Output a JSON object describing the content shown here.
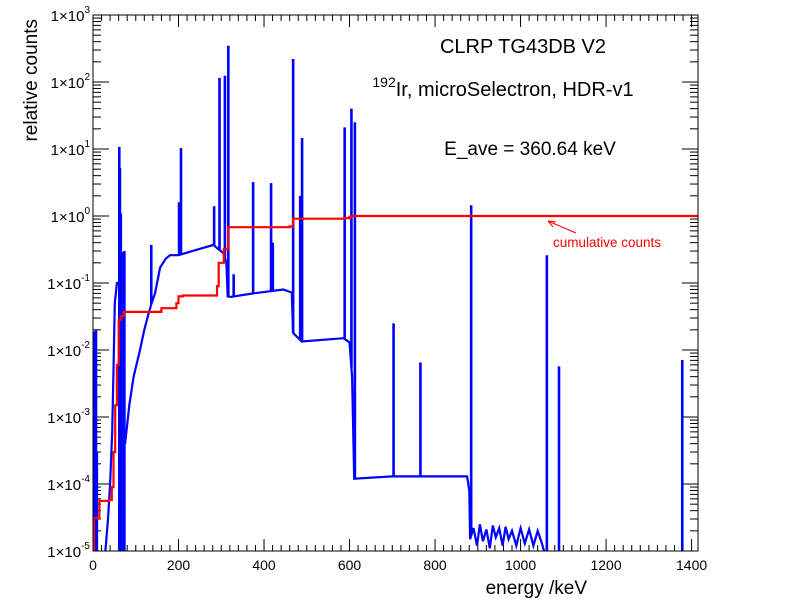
{
  "chart_data": {
    "type": "line",
    "title": "CLRP TG43DB V2",
    "subtitle": {
      "isotope_mass": "192",
      "text": "Ir, microSelectron, HDR-v1"
    },
    "annotation_eave": "E_ave = 360.64 keV",
    "xlabel": "energy /keV",
    "ylabel": "relative counts",
    "xlim": [
      0,
      1415
    ],
    "ylim": [
      1e-05,
      1000
    ],
    "yscale": "log",
    "grid": false,
    "xticks": [
      0,
      200,
      400,
      600,
      800,
      1000,
      1200,
      1400
    ],
    "xtick_labels": [
      "0",
      "200",
      "400",
      "600",
      "800",
      "1000",
      "1200",
      "1400"
    ],
    "ytick_labels": [
      {
        "base": "1×10",
        "exp": "-5"
      },
      {
        "base": "1×10",
        "exp": "-4"
      },
      {
        "base": "1×10",
        "exp": "-3"
      },
      {
        "base": "1×10",
        "exp": "-2"
      },
      {
        "base": "1×10",
        "exp": "-1"
      },
      {
        "base": "1×10",
        "exp": "0"
      },
      {
        "base": "1×10",
        "exp": "1"
      },
      {
        "base": "1×10",
        "exp": "2"
      },
      {
        "base": "1×10",
        "exp": "3"
      }
    ],
    "series": [
      {
        "color": "#0000ff",
        "continuum_segments": [
          [
            [
              29,
              1e-05
            ],
            [
              35,
              3e-05
            ],
            [
              40,
              0.0001
            ],
            [
              45,
              0.0006
            ],
            [
              48,
              0.005
            ],
            [
              51,
              0.05
            ],
            [
              56,
              0.1
            ],
            [
              60,
              0.1
            ]
          ],
          [
            [
              75,
              0.0004
            ],
            [
              85,
              0.0015
            ],
            [
              95,
              0.004
            ],
            [
              110,
              0.01
            ],
            [
              120,
              0.02
            ],
            [
              130,
              0.035
            ],
            [
              137,
              0.05
            ],
            [
              145,
              0.07
            ],
            [
              157,
              0.17
            ],
            [
              170,
              0.23
            ],
            [
              180,
              0.26
            ],
            [
              200,
              0.26
            ],
            [
              240,
              0.31
            ],
            [
              282,
              0.37
            ],
            [
              293,
              0.32
            ],
            [
              305,
              0.28
            ],
            [
              312,
              0.2
            ],
            [
              315,
              0.063
            ],
            [
              322,
              0.062
            ],
            [
              375,
              0.07
            ],
            [
              445,
              0.08
            ],
            [
              465,
              0.072
            ],
            [
              468,
              0.018
            ],
            [
              488,
              0.0134
            ],
            [
              586,
              0.015
            ],
            [
              600,
              0.013
            ],
            [
              606,
              0.004
            ],
            [
              611,
              0.00012
            ],
            [
              700,
              0.00013
            ],
            [
              800,
              0.00013
            ],
            [
              875,
              0.00013
            ],
            [
              880,
              8e-05
            ],
            [
              882,
              1.5e-05
            ],
            [
              890,
              2.2e-05
            ],
            [
              898,
              1.2e-05
            ],
            [
              905,
              2.5e-05
            ],
            [
              912,
              1.4e-05
            ],
            [
              920,
              2.1e-05
            ],
            [
              928,
              1.1e-05
            ],
            [
              935,
              2.4e-05
            ],
            [
              942,
              1.6e-05
            ],
            [
              950,
              2.2e-05
            ],
            [
              958,
              1.2e-05
            ],
            [
              965,
              2.3e-05
            ],
            [
              972,
              1.5e-05
            ],
            [
              980,
              2e-05
            ],
            [
              990,
              1.2e-05
            ],
            [
              1000,
              2.2e-05
            ],
            [
              1010,
              1.3e-05
            ],
            [
              1020,
              2.1e-05
            ],
            [
              1030,
              1.2e-05
            ],
            [
              1040,
              2e-05
            ],
            [
              1050,
              1.3e-05
            ],
            [
              1055,
              5e-06
            ]
          ]
        ],
        "peaks": [
          [
            2,
            0.019
          ],
          [
            4,
            0.0004
          ],
          [
            7,
            0.02
          ],
          [
            9,
            0.0003
          ],
          [
            61.5,
            10.7
          ],
          [
            63,
            5.2
          ],
          [
            65,
            1.1
          ],
          [
            71,
            0.29
          ],
          [
            73.4,
            0.3
          ],
          [
            136.3,
            0.37
          ],
          [
            201.3,
            1.6
          ],
          [
            205.8,
            10.3
          ],
          [
            283.3,
            1.4
          ],
          [
            295.9,
            115
          ],
          [
            308.5,
            124
          ],
          [
            316.5,
            347
          ],
          [
            329,
            0.135
          ],
          [
            374.5,
            3.2
          ],
          [
            416.5,
            3.1
          ],
          [
            420.5,
            0.4
          ],
          [
            468.1,
            220
          ],
          [
            484.6,
            2.0
          ],
          [
            489,
            14.6
          ],
          [
            588.6,
            21
          ],
          [
            604.4,
            40
          ],
          [
            612.5,
            25
          ],
          [
            703,
            0.025
          ],
          [
            765.8,
            0.0065
          ],
          [
            884.5,
            1.45
          ],
          [
            1061.5,
            0.26
          ],
          [
            1089.9,
            0.0057
          ],
          [
            1378.2,
            0.0071
          ]
        ]
      },
      {
        "name": "cumulative counts",
        "color": "#ff0000",
        "steps": [
          [
            0,
            1e-05
          ],
          [
            2,
            3.1e-05
          ],
          [
            15,
            5.6e-05
          ],
          [
            38,
            5.8e-05
          ],
          [
            44,
            9e-05
          ],
          [
            48,
            0.0003
          ],
          [
            52,
            0.0015
          ],
          [
            56,
            0.006
          ],
          [
            60,
            0.028
          ],
          [
            65,
            0.032
          ],
          [
            72,
            0.037
          ],
          [
            130,
            0.037
          ],
          [
            160,
            0.042
          ],
          [
            195,
            0.05
          ],
          [
            200,
            0.063
          ],
          [
            210,
            0.065
          ],
          [
            290,
            0.09
          ],
          [
            294,
            0.2
          ],
          [
            306,
            0.32
          ],
          [
            316,
            0.68
          ],
          [
            460,
            0.7
          ],
          [
            468,
            0.91
          ],
          [
            588,
            0.93
          ],
          [
            600,
            0.97
          ],
          [
            604,
            1.0
          ],
          [
            1415,
            1.0
          ]
        ]
      }
    ],
    "annotations": [
      {
        "text": "cumulative counts",
        "color": "#ff0000",
        "points_to": [
          1060,
          1.0
        ]
      }
    ]
  }
}
